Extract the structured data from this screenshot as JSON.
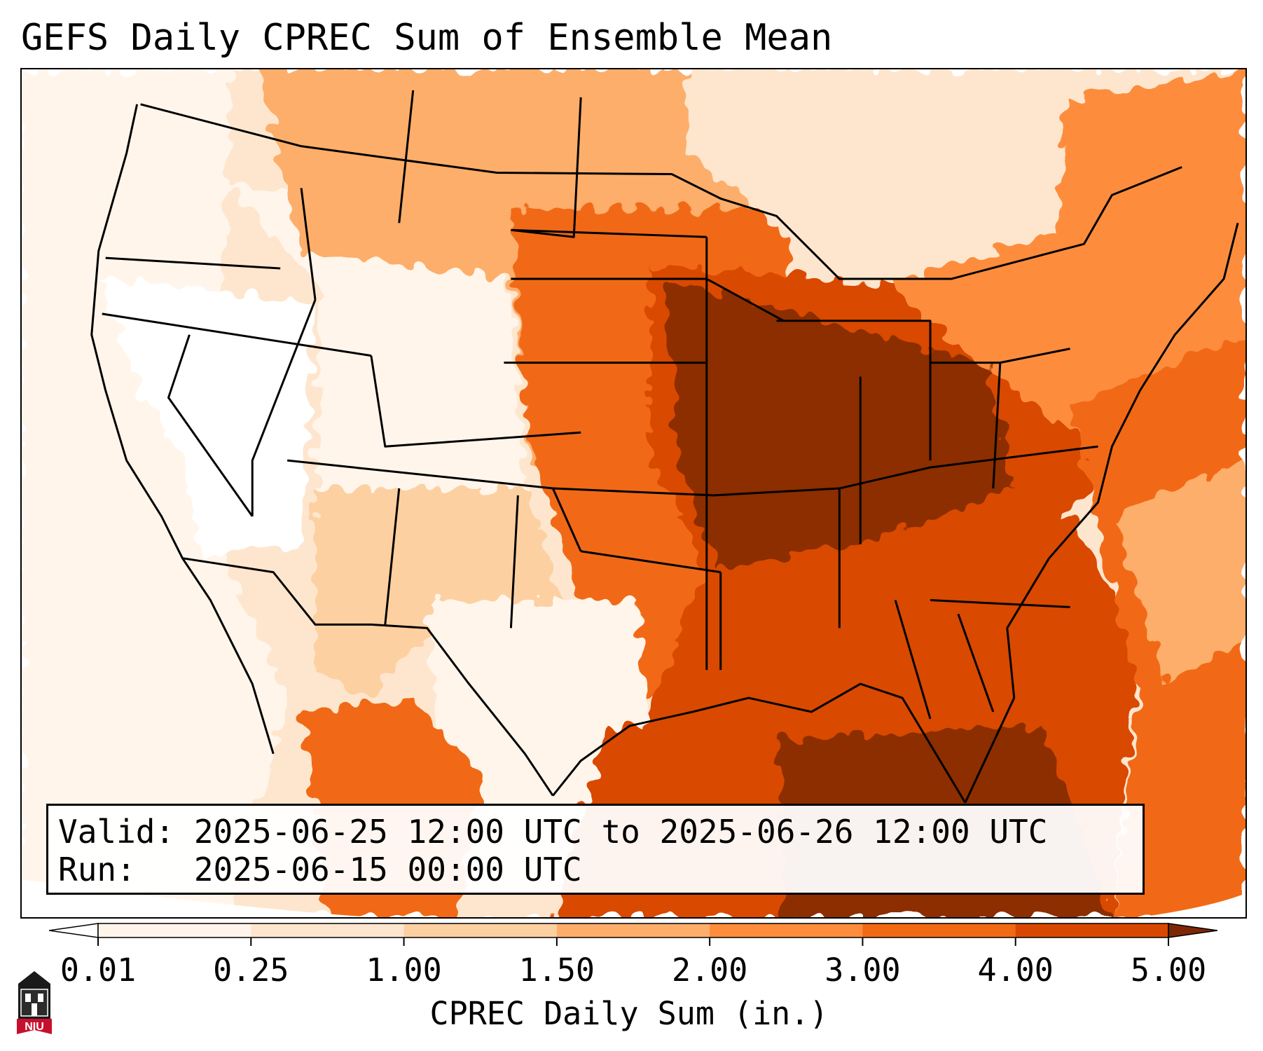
{
  "title": "GEFS Daily CPREC Sum of Ensemble Mean",
  "info": {
    "valid_line": "Valid: 2025-06-25 12:00 UTC to 2025-06-26 12:00 UTC",
    "run_line": "Run:   2025-06-15 00:00 UTC"
  },
  "colorbar": {
    "label": "CPREC Daily Sum (in.)",
    "ticks": [
      "0.01",
      "0.25",
      "1.00",
      "1.50",
      "2.00",
      "3.00",
      "4.00",
      "5.00"
    ],
    "colors": [
      "#fff5eb",
      "#fee6ce",
      "#fdd0a2",
      "#fdae6b",
      "#fd8d3c",
      "#f16913",
      "#d94801",
      "#8c2d04"
    ],
    "under_color": "#ffffff",
    "over_color": "#7f2704"
  },
  "logo": {
    "text": "NIU",
    "color": "#c8102e",
    "icon": "university-tower-icon"
  },
  "map": {
    "domain": "Contiguous United States, southern Canada, northern Mexico, Gulf of Mexico and western Atlantic",
    "heaviest_area": "Midwest, Ohio Valley and Gulf of Mexico",
    "driest_area": "Great Basin and interior West"
  }
}
